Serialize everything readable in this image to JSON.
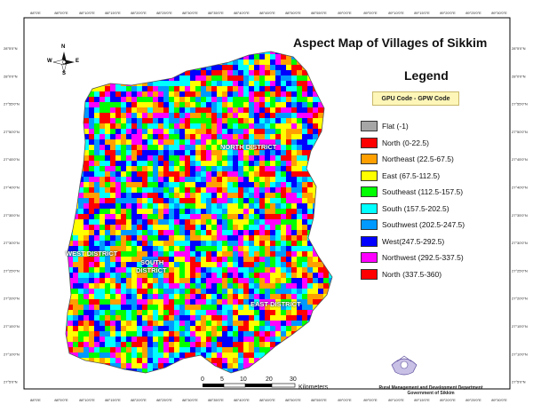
{
  "title": "Aspect Map of Villages of Sikkim",
  "legend": {
    "title": "Legend",
    "gpu_label": "GPU Code - GPW Code",
    "items": [
      {
        "label": "Flat (-1)",
        "color": "#a6a6a6"
      },
      {
        "label": "North (0-22.5)",
        "color": "#ff0000"
      },
      {
        "label": "Northeast (22.5-67.5)",
        "color": "#ff9f00"
      },
      {
        "label": "East (67.5-112.5)",
        "color": "#ffff00"
      },
      {
        "label": "Southeast (112.5-157.5)",
        "color": "#00ff00"
      },
      {
        "label": "South (157.5-202.5)",
        "color": "#00ffff"
      },
      {
        "label": "Southwest (202.5-247.5)",
        "color": "#0099ff"
      },
      {
        "label": "West(247.5-292.5)",
        "color": "#0000ff"
      },
      {
        "label": "Northwest (292.5-337.5)",
        "color": "#ff00ff"
      },
      {
        "label": "North (337.5-360)",
        "color": "#ff0000"
      }
    ]
  },
  "districts": {
    "north": "NORTH DISTRICT",
    "west": "WEST DISTRICT",
    "south_line1": "SOUTH",
    "south_line2": "DISTRICT",
    "east": "EAST DISTRICT"
  },
  "compass": {
    "n": "N",
    "s": "S",
    "e": "E",
    "w": "W"
  },
  "scale": {
    "ticks": [
      "0",
      "5",
      "10",
      "20",
      "30"
    ],
    "unit": "Kilometers"
  },
  "department": {
    "line1": "Rural Management and Development Department",
    "line2": "Government of Sikkim"
  },
  "graticule": {
    "top_labels": [
      "88°0'E",
      "88°5'0\"E",
      "88°10'0\"E",
      "88°15'0\"E",
      "88°20'0\"E",
      "88°25'0\"E",
      "88°30'0\"E",
      "88°35'0\"E",
      "88°40'0\"E",
      "88°45'0\"E",
      "88°50'0\"E",
      "88°55'0\"E",
      "89°0'0\"E",
      "89°5'0\"E",
      "89°10'0\"E",
      "89°15'0\"E",
      "89°20'0\"E",
      "89°25'0\"E",
      "89°30'0\"E"
    ],
    "left_labels": [
      "28°5'0\"N",
      "28°0'0\"N",
      "27°55'0\"N",
      "27°50'0\"N",
      "27°45'0\"N",
      "27°40'0\"N",
      "27°35'0\"N",
      "27°30'0\"N",
      "27°25'0\"N",
      "27°20'0\"N",
      "27°15'0\"N",
      "27°10'0\"N",
      "27°5'0\"N"
    ]
  }
}
